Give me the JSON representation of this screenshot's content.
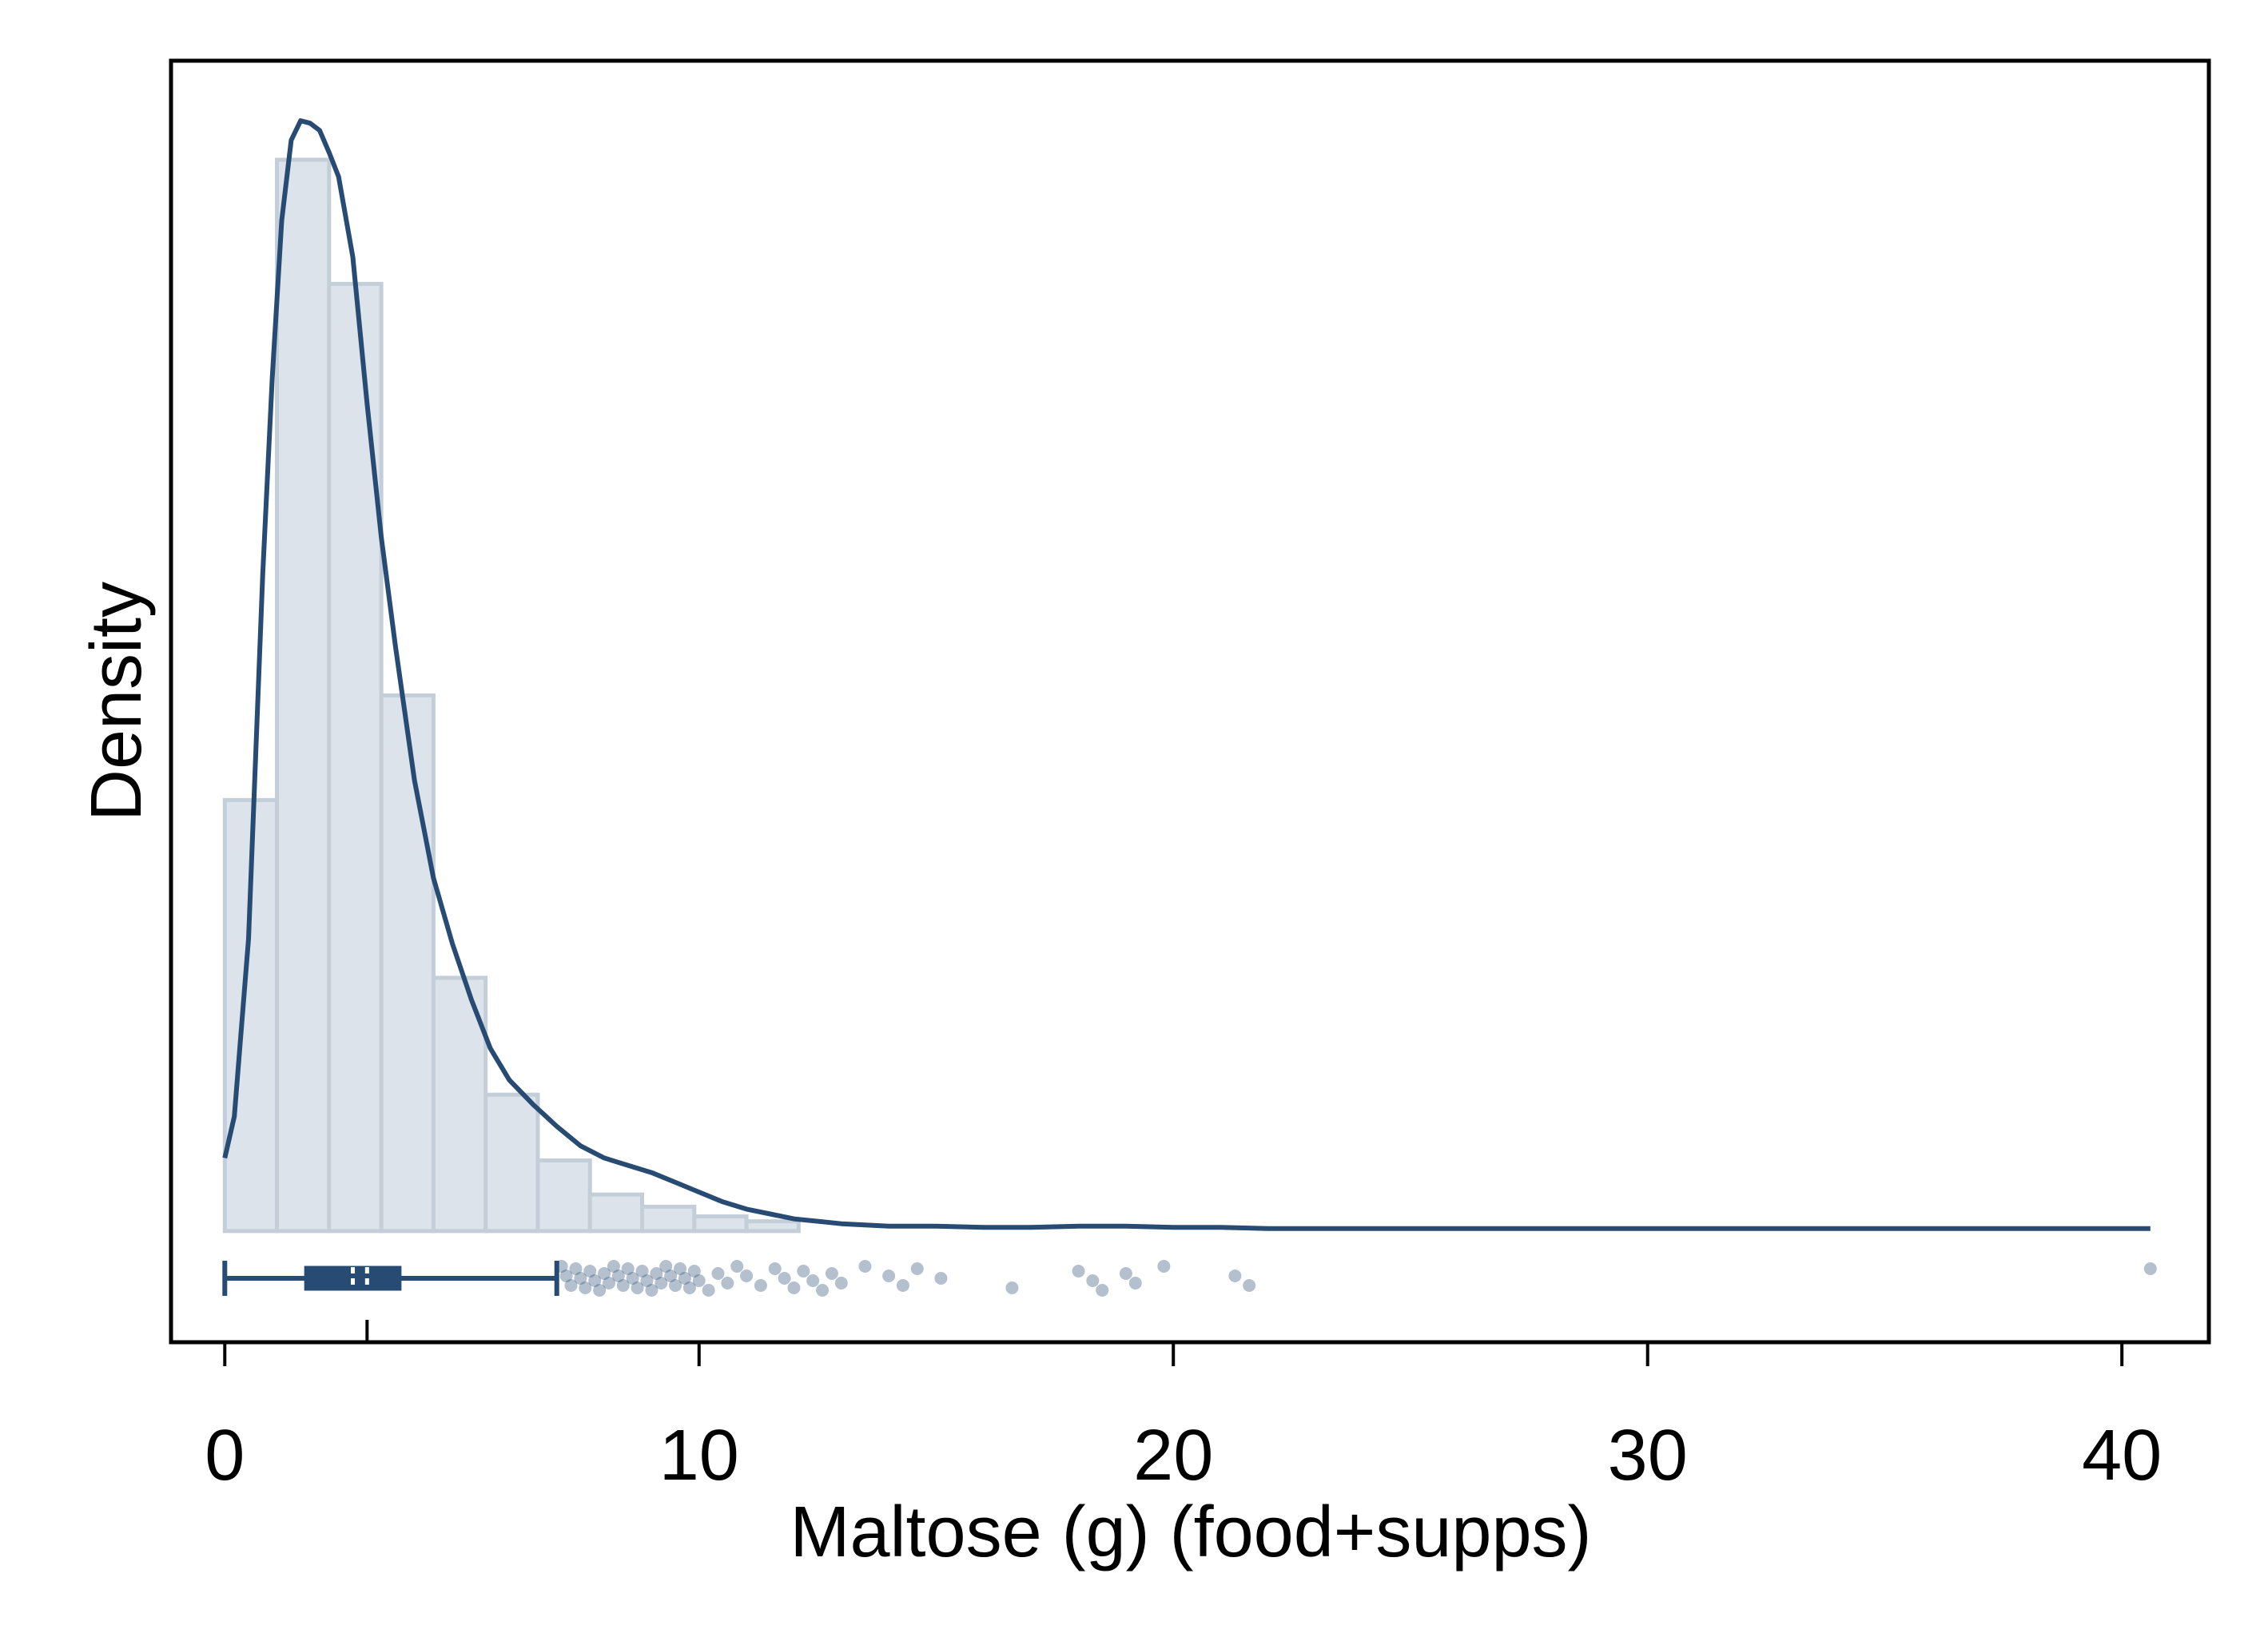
{
  "chart_data": {
    "type": "histogram",
    "title": "",
    "xlabel": "Maltose (g) (food+supps)",
    "ylabel": "Density",
    "xlim": [
      -1.1,
      41.8
    ],
    "ylim": [
      -0.045,
      0.48
    ],
    "xticks": [
      0,
      10,
      20,
      30,
      40
    ],
    "xtick_labels": [
      "0",
      "10",
      "20",
      "30",
      "40"
    ],
    "grid": false,
    "legend": "none",
    "colors": {
      "bar_fill": "#dde3ea",
      "bar_stroke": "#c3ced9",
      "curve": "#274b73",
      "points": "#274b73"
    },
    "histogram": {
      "bin_edges": [
        0,
        1.1,
        2.2,
        3.3,
        4.4,
        5.5,
        6.6,
        7.7,
        8.8,
        9.9,
        11.0,
        12.1
      ],
      "density": [
        0.177,
        0.44,
        0.389,
        0.22,
        0.104,
        0.056,
        0.029,
        0.015,
        0.01,
        0.006,
        0.004
      ]
    },
    "kde_curve": {
      "x": [
        0,
        0.2,
        0.5,
        0.8,
        1.0,
        1.2,
        1.4,
        1.6,
        1.8,
        2.0,
        2.2,
        2.4,
        2.7,
        3.0,
        3.3,
        3.6,
        4.0,
        4.4,
        4.8,
        5.2,
        5.6,
        6.0,
        6.5,
        7.0,
        7.5,
        8.0,
        8.5,
        9.0,
        9.5,
        10.0,
        10.5,
        11.0,
        11.5,
        12.0,
        13.0,
        14.0,
        15.0,
        16.0,
        17.0,
        18.0,
        19.0,
        20.0,
        21.0,
        22.0,
        25.0,
        30.0,
        35.0,
        40.0,
        40.6
      ],
      "y": [
        0.03,
        0.047,
        0.12,
        0.27,
        0.35,
        0.415,
        0.448,
        0.456,
        0.455,
        0.452,
        0.443,
        0.433,
        0.4,
        0.34,
        0.285,
        0.24,
        0.185,
        0.145,
        0.118,
        0.095,
        0.075,
        0.062,
        0.052,
        0.043,
        0.035,
        0.03,
        0.027,
        0.024,
        0.02,
        0.016,
        0.012,
        0.009,
        0.007,
        0.005,
        0.003,
        0.002,
        0.002,
        0.0015,
        0.0015,
        0.002,
        0.002,
        0.0015,
        0.0015,
        0.001,
        0.001,
        0.001,
        0.001,
        0.001,
        0.001
      ]
    },
    "boxplot": {
      "whisker_low": 0,
      "q1": 1.7,
      "median": 2.7,
      "mean": 3.0,
      "q3": 3.7,
      "whisker_high": 7.0
    },
    "outliers": [
      7.1,
      7.2,
      7.3,
      7.4,
      7.5,
      7.6,
      7.7,
      7.8,
      7.9,
      8.0,
      8.1,
      8.2,
      8.3,
      8.4,
      8.5,
      8.6,
      8.7,
      8.8,
      8.9,
      9.0,
      9.1,
      9.2,
      9.3,
      9.4,
      9.5,
      9.6,
      9.7,
      9.8,
      9.9,
      10.0,
      10.2,
      10.4,
      10.6,
      10.8,
      11.0,
      11.3,
      11.6,
      11.8,
      12.0,
      12.2,
      12.4,
      12.6,
      12.8,
      13.0,
      13.5,
      14.0,
      14.3,
      14.6,
      15.1,
      16.6,
      18.0,
      18.3,
      18.5,
      19.0,
      19.2,
      19.8,
      21.3,
      21.6,
      40.6
    ]
  }
}
